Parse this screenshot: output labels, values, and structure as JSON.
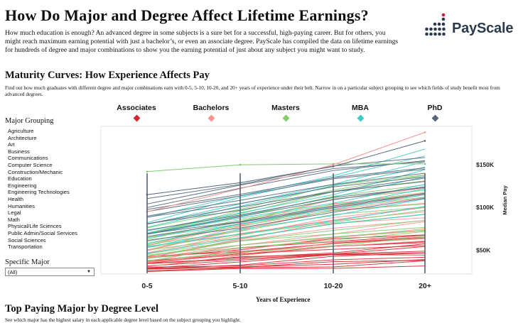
{
  "header": {
    "title": "How Do Major and Degree Affect Lifetime Earnings?",
    "intro": "How much education is enough? An advanced degree in some subjects is a sure bet for a successful, high-paying career. But for others, you might reach maximum earning potential with just a bachelor’s, or even an associate degree. PayScale has compiled the data on lifetime earnings for hundreds of degree and major combinations to show you the earning potential of just about any subject you might want to study.",
    "logo_text": "PayScale"
  },
  "maturity": {
    "heading": "Maturity Curves: How Experience Affects Pay",
    "description": "Find out how much graduates with different degree and major combinations earn with 0-5, 5-10, 10-20, and 20+ years of experience under their belt. Narrow in on a particular subject grouping to see which fields of study benefit most from advanced degrees."
  },
  "legend": [
    {
      "label": "Associates",
      "color": "#d6262e"
    },
    {
      "label": "Bachelors",
      "color": "#f49590"
    },
    {
      "label": "Masters",
      "color": "#7fcc6b"
    },
    {
      "label": "MBA",
      "color": "#3ec8c6"
    },
    {
      "label": "PhD",
      "color": "#56677a"
    }
  ],
  "filters": {
    "major_grouping_title": "Major Grouping",
    "major_groupings": [
      "Agriculture",
      "Architecture",
      "Art",
      "Business",
      "Communications",
      "Computer Science",
      "Construction/Mechanic",
      "Education",
      "Engineering",
      "Engineering Technologies",
      "Health",
      "Humanities",
      "Legal",
      "Math",
      "Physical/Life Sciences",
      "Public Admin/Social Services",
      "Social Sciences",
      "Transportation"
    ],
    "specific_major_title": "Specific Major",
    "specific_major_value": "(All)"
  },
  "chart_data": {
    "type": "line",
    "title": "Maturity Curves: How Experience Affects Pay",
    "xlabel": "Years of Experience",
    "ylabel": "Median Pay",
    "categories": [
      "0-5",
      "5-10",
      "10-20",
      "20+"
    ],
    "y_ticks": [
      {
        "value": 50000,
        "label": "$50K"
      },
      {
        "value": 100000,
        "label": "$100K"
      },
      {
        "value": 150000,
        "label": "$150K"
      }
    ],
    "ylim": [
      22000,
      195000
    ],
    "series": [
      {
        "name": "Associates",
        "color": "#d6262e",
        "low": [
          25000,
          28000,
          31000,
          33000
        ],
        "high": [
          42000,
          52000,
          62000,
          70000
        ],
        "count": 18
      },
      {
        "name": "Bachelors",
        "color": "#f49590",
        "low": [
          32000,
          42000,
          52000,
          58000
        ],
        "high": [
          55000,
          84000,
          110000,
          125000
        ],
        "count": 16
      },
      {
        "name": "Masters",
        "color": "#7fcc6b",
        "low": [
          38000,
          48000,
          58000,
          64000
        ],
        "high": [
          75000,
          100000,
          125000,
          140000
        ],
        "count": 16
      },
      {
        "name": "MBA",
        "color": "#3ec8c6",
        "low": [
          48000,
          64000,
          82000,
          95000
        ],
        "high": [
          88000,
          115000,
          138000,
          170000
        ],
        "count": 12
      },
      {
        "name": "PhD",
        "color": "#56677a",
        "low": [
          60000,
          76000,
          96000,
          110000
        ],
        "high": [
          108000,
          128000,
          150000,
          160000
        ],
        "count": 14
      }
    ],
    "highlight_lines": [
      {
        "series": "Masters",
        "values": [
          142000,
          150000,
          151000,
          151000
        ]
      },
      {
        "series": "Bachelors",
        "values": [
          95000,
          122000,
          150000,
          188000
        ]
      },
      {
        "series": "PhD",
        "values": [
          115000,
          129000,
          148000,
          178000
        ]
      }
    ]
  },
  "top_paying": {
    "heading": "Top Paying Major by Degree Level",
    "description": "See which major has the highest salary in each applicable degree level based on the subject grouping you highlight."
  }
}
